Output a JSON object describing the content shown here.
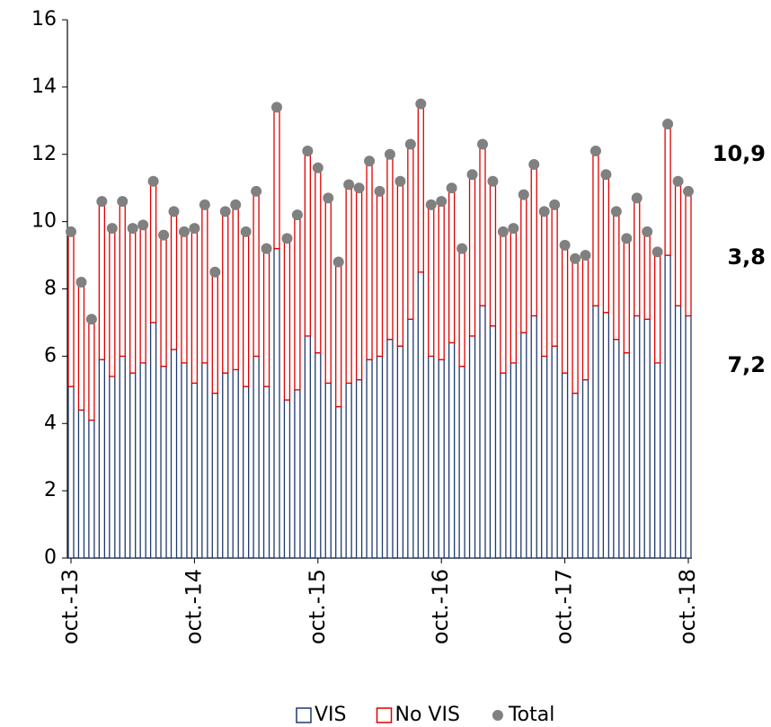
{
  "chart_data": {
    "type": "bar",
    "stacked": true,
    "categories": [
      "oct.-13",
      null,
      null,
      null,
      null,
      null,
      null,
      null,
      null,
      null,
      null,
      null,
      "oct.-14",
      null,
      null,
      null,
      null,
      null,
      null,
      null,
      null,
      null,
      null,
      null,
      "oct.-15",
      null,
      null,
      null,
      null,
      null,
      null,
      null,
      null,
      null,
      null,
      null,
      "oct.-16",
      null,
      null,
      null,
      null,
      null,
      null,
      null,
      null,
      null,
      null,
      null,
      "oct.-17",
      null,
      null,
      null,
      null,
      null,
      null,
      null,
      null,
      null,
      null,
      null,
      "oct.-18"
    ],
    "series": [
      {
        "name": "VIS",
        "color": "#1f3a6e",
        "end_label": "7,2",
        "values": [
          5.1,
          4.4,
          4.1,
          5.9,
          5.4,
          6.0,
          5.5,
          5.8,
          7.0,
          5.7,
          6.2,
          5.8,
          5.2,
          5.8,
          4.9,
          5.5,
          5.6,
          5.1,
          6.0,
          5.1,
          9.2,
          4.7,
          5.0,
          6.6,
          6.1,
          5.2,
          4.5,
          5.2,
          5.3,
          5.9,
          6.0,
          6.5,
          6.3,
          7.1,
          8.5,
          6.0,
          5.9,
          6.4,
          5.7,
          6.6,
          7.5,
          6.9,
          5.5,
          5.8,
          6.7,
          7.2,
          6.0,
          6.3,
          5.5,
          4.9,
          5.3,
          7.5,
          7.3,
          6.5,
          6.1,
          7.2,
          7.1,
          5.8,
          9.0,
          7.5,
          7.2
        ]
      },
      {
        "name": "No VIS",
        "color": "#e00000",
        "end_label": "3,8",
        "values": [
          4.6,
          3.8,
          3.0,
          4.7,
          4.4,
          4.6,
          4.3,
          4.1,
          4.2,
          3.9,
          4.1,
          3.9,
          4.6,
          4.7,
          3.6,
          4.8,
          4.9,
          4.6,
          4.9,
          4.1,
          4.2,
          4.8,
          5.2,
          5.5,
          5.5,
          5.5,
          4.3,
          5.9,
          5.7,
          5.9,
          4.9,
          5.5,
          4.9,
          5.2,
          5.0,
          4.5,
          4.7,
          4.6,
          3.5,
          4.8,
          4.8,
          4.3,
          4.2,
          4.0,
          4.1,
          4.5,
          4.3,
          4.2,
          3.8,
          4.0,
          3.7,
          4.6,
          4.1,
          3.8,
          3.4,
          3.5,
          2.6,
          3.3,
          3.9,
          3.7,
          3.8
        ]
      },
      {
        "name": "Total",
        "type": "scatter",
        "color": "#808080",
        "end_label": "10,9",
        "values": [
          9.7,
          8.2,
          7.1,
          10.6,
          9.8,
          10.6,
          9.8,
          9.9,
          11.2,
          9.6,
          10.3,
          9.7,
          9.8,
          10.5,
          8.5,
          10.3,
          10.5,
          9.7,
          10.9,
          9.2,
          13.4,
          9.5,
          10.2,
          12.1,
          11.6,
          10.7,
          8.8,
          11.1,
          11.0,
          11.8,
          10.9,
          12.0,
          11.2,
          12.3,
          13.5,
          10.5,
          10.6,
          11.0,
          9.2,
          11.4,
          12.3,
          11.2,
          9.7,
          9.8,
          10.8,
          11.7,
          10.3,
          10.5,
          9.3,
          8.9,
          9.0,
          12.1,
          11.4,
          10.3,
          9.5,
          10.7,
          9.7,
          9.1,
          12.9,
          11.2,
          10.9
        ]
      }
    ],
    "ylim": [
      0,
      16
    ],
    "yticks": [
      0,
      2,
      4,
      6,
      8,
      10,
      12,
      14,
      16
    ],
    "grid": false,
    "legend": "bottom"
  }
}
